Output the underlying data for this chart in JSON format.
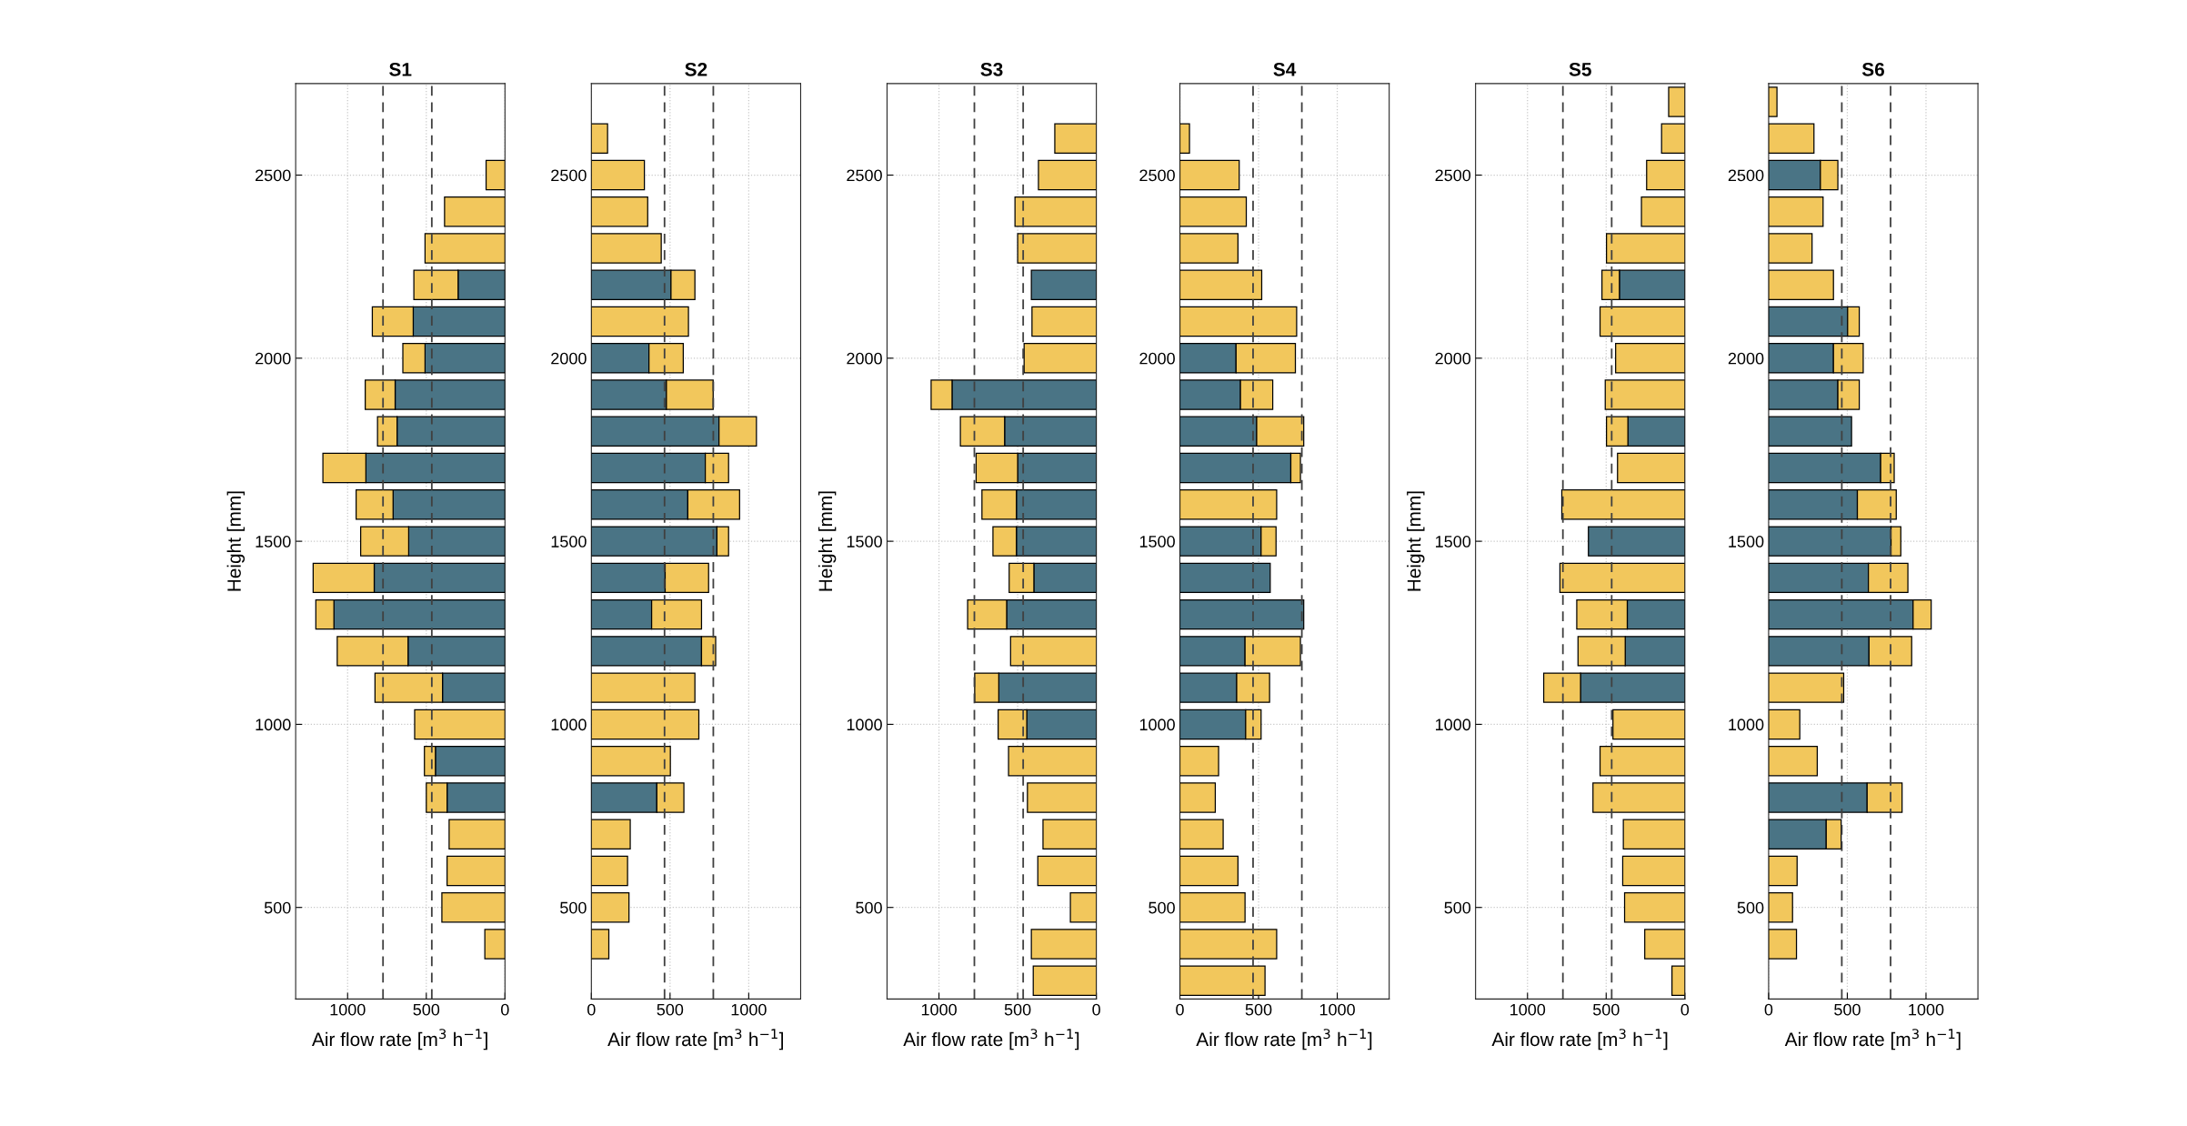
{
  "chart_data": [
    {
      "type": "bar",
      "title": "S1",
      "xlabel": "Air flow rate [m$^{3}$ h$^{−1}$]",
      "ylabel": "Height [mm]",
      "orientation": "horizontal",
      "stacked": true,
      "grid": true,
      "x": [
        400,
        500,
        600,
        700,
        800,
        900,
        1000,
        1100,
        1200,
        1300,
        1400,
        1500,
        1600,
        1700,
        1800,
        1900,
        2000,
        2100,
        2200,
        2300,
        2400,
        2500
      ],
      "series": [
        {
          "color": "#4a7485",
          "values": [
            null,
            null,
            null,
            null,
            368,
            442,
            null,
            397,
            616,
            1087,
            831,
            612,
            711,
            884,
            686,
            698,
            508,
            583,
            298,
            null,
            null,
            null
          ]
        },
        {
          "color": "#f2c75c",
          "values": [
            128,
            401,
            368,
            355,
            132,
            70,
            574,
            429,
            450,
            115,
            388,
            305,
            235,
            273,
            124,
            190,
            141,
            260,
            281,
            508,
            384,
            120
          ]
        }
      ],
      "xlim": [
        1330,
        0
      ],
      "xticks": [
        0,
        500,
        1000
      ],
      "ylim": [
        250,
        2750
      ],
      "yticks": [
        500,
        1000,
        1500,
        2000,
        2500
      ],
      "ref_lines": [
        {
          "axis": "x",
          "value": 465,
          "color": "#404040",
          "line_style": "dashed"
        },
        {
          "axis": "x",
          "value": 775,
          "color": "#404040",
          "line_style": "dashed"
        }
      ]
    },
    {
      "type": "bar",
      "title": "S2",
      "xlabel": "Air flow rate [m$^{3}$ h$^{−1}$]",
      "orientation": "horizontal",
      "stacked": true,
      "grid": true,
      "x": [
        400,
        500,
        600,
        700,
        800,
        900,
        1000,
        1100,
        1200,
        1300,
        1400,
        1500,
        1600,
        1700,
        1800,
        1900,
        2000,
        2100,
        2200,
        2300,
        2400,
        2500,
        2600
      ],
      "series": [
        {
          "color": "#4a7485",
          "values": [
            null,
            null,
            null,
            null,
            416,
            null,
            null,
            null,
            700,
            383,
            469,
            798,
            613,
            724,
            811,
            477,
            366,
            null,
            506,
            null,
            null,
            null,
            null
          ]
        },
        {
          "color": "#f2c75c",
          "values": [
            111,
            239,
            230,
            247,
            172,
            502,
            683,
            658,
            90,
            317,
            276,
            74,
            329,
            148,
            238,
            297,
            218,
            617,
            152,
            444,
            358,
            337,
            103
          ]
        }
      ],
      "xlim": [
        0,
        1330
      ],
      "xticks": [
        0,
        500,
        1000
      ],
      "ylim": [
        250,
        2750
      ],
      "yticks": [
        500,
        1000,
        1500,
        2000,
        2500
      ],
      "ref_lines": [
        {
          "axis": "x",
          "value": 465,
          "color": "#404040",
          "line_style": "dashed"
        },
        {
          "axis": "x",
          "value": 775,
          "color": "#404040",
          "line_style": "dashed"
        }
      ]
    },
    {
      "type": "bar",
      "title": "S3",
      "xlabel": "Air flow rate [m$^{3}$ h$^{−1}$]",
      "ylabel": "Height [mm]",
      "orientation": "horizontal",
      "stacked": true,
      "grid": true,
      "x": [
        300,
        400,
        500,
        600,
        700,
        800,
        900,
        1000,
        1100,
        1200,
        1300,
        1400,
        1500,
        1600,
        1700,
        1800,
        1900,
        2000,
        2100,
        2200,
        2300,
        2400,
        2500,
        2600
      ],
      "series": [
        {
          "color": "#4a7485",
          "values": [
            null,
            null,
            null,
            null,
            null,
            null,
            null,
            442,
            620,
            null,
            570,
            397,
            508,
            508,
            500,
            583,
            917,
            null,
            null,
            413,
            null,
            null,
            null,
            null
          ]
        },
        {
          "color": "#f2c75c",
          "values": [
            401,
            413,
            165,
            372,
            339,
            438,
            558,
            182,
            153,
            545,
            248,
            157,
            149,
            219,
            264,
            281,
            133,
            459,
            409,
            null,
            500,
            517,
            368,
            264
          ]
        }
      ],
      "xlim": [
        1330,
        0
      ],
      "xticks": [
        0,
        500,
        1000
      ],
      "ylim": [
        250,
        2750
      ],
      "yticks": [
        500,
        1000,
        1500,
        2000,
        2500
      ],
      "ref_lines": [
        {
          "axis": "x",
          "value": 465,
          "color": "#404040",
          "line_style": "dashed"
        },
        {
          "axis": "x",
          "value": 775,
          "color": "#404040",
          "line_style": "dashed"
        }
      ]
    },
    {
      "type": "bar",
      "title": "S4",
      "xlabel": "Air flow rate [m$^{3}$ h$^{−1}$]",
      "orientation": "horizontal",
      "stacked": true,
      "grid": true,
      "x": [
        300,
        400,
        500,
        600,
        700,
        800,
        900,
        1000,
        1100,
        1200,
        1300,
        1400,
        1500,
        1600,
        1700,
        1800,
        1900,
        2000,
        2100,
        2200,
        2300,
        2400,
        2500,
        2600
      ],
      "series": [
        {
          "color": "#4a7485",
          "values": [
            null,
            null,
            null,
            null,
            null,
            null,
            null,
            418,
            361,
            414,
            787,
            574,
            516,
            null,
            705,
            488,
            385,
            357,
            null,
            null,
            null,
            null,
            null,
            null
          ]
        },
        {
          "color": "#f2c75c",
          "values": [
            541,
            615,
            414,
            369,
            275,
            225,
            246,
            98,
            209,
            352,
            null,
            null,
            95,
            615,
            61,
            299,
            205,
            377,
            742,
            520,
            369,
            422,
            377,
            61
          ]
        }
      ],
      "xlim": [
        0,
        1330
      ],
      "xticks": [
        0,
        500,
        1000
      ],
      "ylim": [
        250,
        2750
      ],
      "yticks": [
        500,
        1000,
        1500,
        2000,
        2500
      ],
      "ref_lines": [
        {
          "axis": "x",
          "value": 465,
          "color": "#404040",
          "line_style": "dashed"
        },
        {
          "axis": "x",
          "value": 775,
          "color": "#404040",
          "line_style": "dashed"
        }
      ]
    },
    {
      "type": "bar",
      "title": "S5",
      "xlabel": "Air flow rate [m$^{3}$ h$^{−1}$]",
      "ylabel": "Height [mm]",
      "orientation": "horizontal",
      "stacked": true,
      "grid": true,
      "x": [
        300,
        400,
        500,
        600,
        700,
        800,
        900,
        1000,
        1100,
        1200,
        1300,
        1400,
        1500,
        1600,
        1700,
        1800,
        1900,
        2000,
        2100,
        2200,
        2300,
        2400,
        2500,
        2600,
        2700
      ],
      "series": [
        {
          "color": "#4a7485",
          "values": [
            null,
            null,
            null,
            null,
            null,
            null,
            null,
            null,
            663,
            379,
            366,
            null,
            613,
            null,
            null,
            362,
            null,
            null,
            null,
            416,
            null,
            null,
            null,
            null,
            null
          ]
        },
        {
          "color": "#f2c75c",
          "values": [
            82,
            255,
            383,
            395,
            391,
            584,
            539,
            457,
            234,
            300,
            321,
            794,
            null,
            782,
            428,
            136,
            506,
            440,
            539,
            111,
            498,
            276,
            243,
            148,
            103
          ]
        }
      ],
      "xlim": [
        1330,
        0
      ],
      "xticks": [
        0,
        500,
        1000
      ],
      "ylim": [
        250,
        2750
      ],
      "yticks": [
        500,
        1000,
        1500,
        2000,
        2500
      ],
      "ref_lines": [
        {
          "axis": "x",
          "value": 465,
          "color": "#404040",
          "line_style": "dashed"
        },
        {
          "axis": "x",
          "value": 775,
          "color": "#404040",
          "line_style": "dashed"
        }
      ]
    },
    {
      "type": "bar",
      "title": "S6",
      "xlabel": "Air flow rate [m$^{3}$ h$^{−1}$]",
      "orientation": "horizontal",
      "stacked": true,
      "grid": true,
      "x": [
        400,
        500,
        600,
        700,
        800,
        900,
        1000,
        1100,
        1200,
        1300,
        1400,
        1500,
        1600,
        1700,
        1800,
        1900,
        2000,
        2100,
        2200,
        2300,
        2400,
        2500,
        2600,
        2700
      ],
      "series": [
        {
          "color": "#4a7485",
          "values": [
            null,
            null,
            null,
            366,
            626,
            null,
            null,
            null,
            638,
            918,
            634,
            778,
            564,
            712,
            527,
            440,
            412,
            502,
            null,
            null,
            null,
            329,
            null,
            null
          ]
        },
        {
          "color": "#f2c75c",
          "values": [
            177,
            152,
            181,
            95,
            222,
            309,
            198,
            477,
            271,
            115,
            251,
            62,
            247,
            86,
            null,
            136,
            189,
            74,
            412,
            276,
            346,
            111,
            288,
            53
          ]
        }
      ],
      "xlim": [
        0,
        1330
      ],
      "xticks": [
        0,
        500,
        1000
      ],
      "ylim": [
        250,
        2750
      ],
      "yticks": [
        500,
        1000,
        1500,
        2000,
        2500
      ],
      "ref_lines": [
        {
          "axis": "x",
          "value": 465,
          "color": "#404040",
          "line_style": "dashed"
        },
        {
          "axis": "x",
          "value": 775,
          "color": "#404040",
          "line_style": "dashed"
        }
      ]
    }
  ]
}
